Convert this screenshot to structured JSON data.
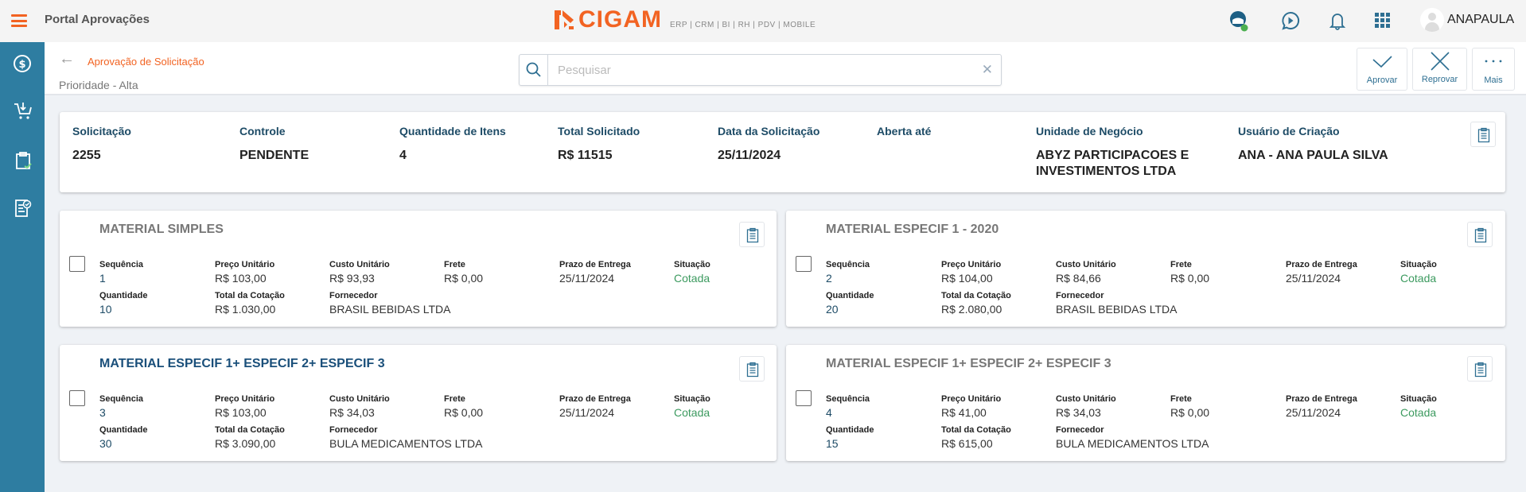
{
  "header": {
    "app_title": "Portal Aprovações",
    "logo_text": "CIGAM",
    "logo_sub": "ERP | CRM | BI | RH | PDV | MOBILE",
    "user": "ANAPAULA",
    "status_color": "#4caf50"
  },
  "subheader": {
    "breadcrumb": "Aprovação de Solicitação",
    "priority": "Prioridade - Alta",
    "search_placeholder": "Pesquisar",
    "search_value": "",
    "actions": {
      "approve": "Aprovar",
      "reject": "Reprovar",
      "more": "Mais"
    }
  },
  "summary": [
    {
      "label": "Solicitação",
      "value": "2255"
    },
    {
      "label": "Controle",
      "value": "PENDENTE"
    },
    {
      "label": "Quantidade de Itens",
      "value": "4"
    },
    {
      "label": "Total Solicitado",
      "value": "R$ 11515"
    },
    {
      "label": "Data da Solicitação",
      "value": "25/11/2024"
    },
    {
      "label": "Aberta até",
      "value": ""
    },
    {
      "label": "Unidade de Negócio",
      "value": "ABYZ PARTICIPACOES E INVESTIMENTOS LTDA"
    },
    {
      "label": "Usuário de Criação",
      "value": "ANA - ANA PAULA SILVA"
    }
  ],
  "field_labels": {
    "seq": "Sequência",
    "price": "Preço Unitário",
    "cost": "Custo Unitário",
    "freight": "Frete",
    "deadline": "Prazo de Entrega",
    "status": "Situação",
    "qty": "Quantidade",
    "total": "Total da Cotação",
    "supplier": "Fornecedor"
  },
  "items": [
    {
      "title": "MATERIAL SIMPLES",
      "selected": false,
      "seq": "1",
      "price": "R$ 103,00",
      "cost": "R$ 93,93",
      "freight": "R$ 0,00",
      "deadline": "25/11/2024",
      "status": "Cotada",
      "qty": "10",
      "total": "R$ 1.030,00",
      "supplier": "BRASIL BEBIDAS LTDA"
    },
    {
      "title": "MATERIAL ESPECIF 1 - 2020",
      "selected": false,
      "seq": "2",
      "price": "R$ 104,00",
      "cost": "R$ 84,66",
      "freight": "R$ 0,00",
      "deadline": "25/11/2024",
      "status": "Cotada",
      "qty": "20",
      "total": "R$ 2.080,00",
      "supplier": "BRASIL BEBIDAS LTDA"
    },
    {
      "title": "MATERIAL ESPECIF 1+ ESPECIF 2+ ESPECIF 3",
      "selected": true,
      "seq": "3",
      "price": "R$ 103,00",
      "cost": "R$ 34,03",
      "freight": "R$ 0,00",
      "deadline": "25/11/2024",
      "status": "Cotada",
      "qty": "30",
      "total": "R$ 3.090,00",
      "supplier": "BULA MEDICAMENTOS LTDA"
    },
    {
      "title": "MATERIAL ESPECIF 1+ ESPECIF 2+ ESPECIF 3",
      "selected": false,
      "seq": "4",
      "price": "R$ 41,00",
      "cost": "R$ 34,03",
      "freight": "R$ 0,00",
      "deadline": "25/11/2024",
      "status": "Cotada",
      "qty": "15",
      "total": "R$ 615,00",
      "supplier": "BULA MEDICAMENTOS LTDA"
    }
  ]
}
